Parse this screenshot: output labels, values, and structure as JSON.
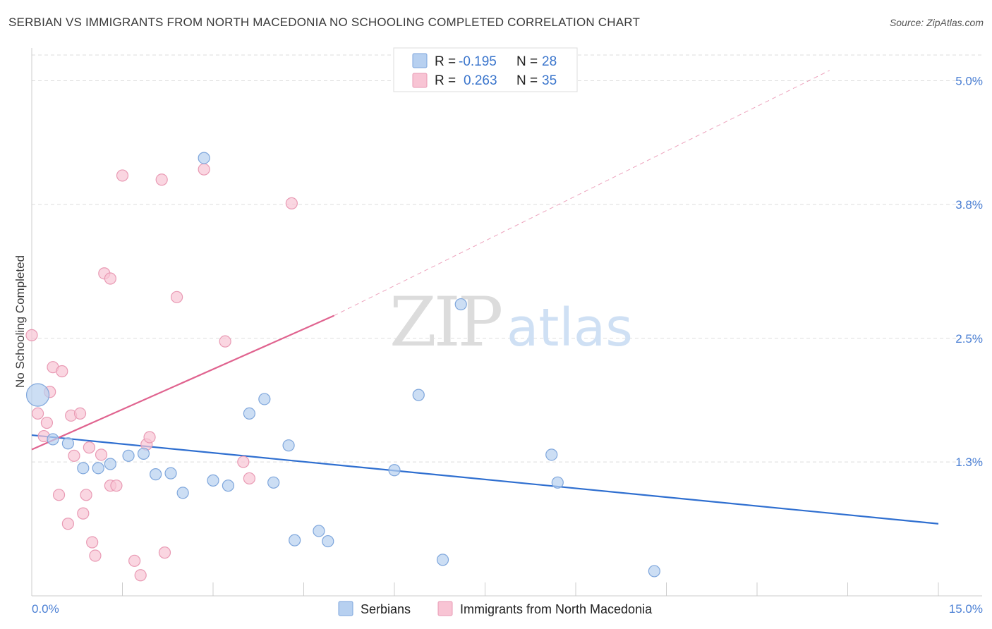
{
  "title": "SERBIAN VS IMMIGRANTS FROM NORTH MACEDONIA NO SCHOOLING COMPLETED CORRELATION CHART",
  "source": "Source: ZipAtlas.com",
  "watermark": {
    "zip": "ZIP",
    "atlas": "atlas"
  },
  "colors": {
    "serbians_fill": "#b7d0f0",
    "serbians_stroke": "#7ea6dc",
    "serbians_line": "#2f6fd0",
    "macedonia_fill": "#f8c4d4",
    "macedonia_stroke": "#e99ab4",
    "macedonia_line": "#e0638f",
    "tick_text": "#4a7fd4",
    "grid": "#dddddd"
  },
  "legend": {
    "rows": [
      {
        "r_label": "R =",
        "r_value": "-0.195",
        "n_label": "N =",
        "n_value": "28"
      },
      {
        "r_label": "R =",
        "r_value": "0.263",
        "n_label": "N =",
        "n_value": "35"
      }
    ]
  },
  "chart_data": {
    "type": "scatter",
    "title": "SERBIAN VS IMMIGRANTS FROM NORTH MACEDONIA NO SCHOOLING COMPLETED CORRELATION CHART",
    "xlabel": "",
    "ylabel": "No Schooling Completed",
    "xlim": [
      0,
      15
    ],
    "ylim": [
      0,
      5.25
    ],
    "x_tick_labels": [
      "0.0%",
      "15.0%"
    ],
    "y_ticks": [
      1.3,
      2.5,
      3.8,
      5.0
    ],
    "y_tick_labels": [
      "1.3%",
      "2.5%",
      "3.8%",
      "5.0%"
    ],
    "grid": true,
    "series": [
      {
        "name": "Serbians",
        "r": -0.195,
        "n": 28,
        "trend": {
          "x": [
            0,
            15
          ],
          "y": [
            1.56,
            0.7
          ]
        },
        "points": [
          {
            "x": 0.1,
            "y": 1.95,
            "big": true
          },
          {
            "x": 0.35,
            "y": 1.52
          },
          {
            "x": 0.6,
            "y": 1.48
          },
          {
            "x": 0.85,
            "y": 1.24
          },
          {
            "x": 1.1,
            "y": 1.24
          },
          {
            "x": 1.3,
            "y": 1.28
          },
          {
            "x": 1.6,
            "y": 1.36
          },
          {
            "x": 1.85,
            "y": 1.38
          },
          {
            "x": 2.05,
            "y": 1.18
          },
          {
            "x": 2.3,
            "y": 1.19
          },
          {
            "x": 2.5,
            "y": 1.0
          },
          {
            "x": 2.85,
            "y": 4.25
          },
          {
            "x": 3.0,
            "y": 1.12
          },
          {
            "x": 3.25,
            "y": 1.07
          },
          {
            "x": 3.6,
            "y": 1.77
          },
          {
            "x": 3.85,
            "y": 1.91
          },
          {
            "x": 4.0,
            "y": 1.1
          },
          {
            "x": 4.25,
            "y": 1.46
          },
          {
            "x": 4.35,
            "y": 0.54
          },
          {
            "x": 4.75,
            "y": 0.63
          },
          {
            "x": 4.9,
            "y": 0.53
          },
          {
            "x": 6.0,
            "y": 1.22
          },
          {
            "x": 6.4,
            "y": 1.95
          },
          {
            "x": 6.8,
            "y": 0.35
          },
          {
            "x": 7.1,
            "y": 2.83
          },
          {
            "x": 8.6,
            "y": 1.37
          },
          {
            "x": 8.7,
            "y": 1.1
          },
          {
            "x": 10.3,
            "y": 0.24
          }
        ]
      },
      {
        "name": "Immigrants from North Macedonia",
        "r": 0.263,
        "n": 35,
        "trend": {
          "x": [
            0,
            5
          ],
          "y": [
            1.42,
            2.72
          ]
        },
        "trend_extended": {
          "x": [
            5,
            13.2
          ],
          "y": [
            2.72,
            5.1
          ]
        },
        "points": [
          {
            "x": 0.0,
            "y": 2.53
          },
          {
            "x": 0.1,
            "y": 1.77
          },
          {
            "x": 0.2,
            "y": 1.55
          },
          {
            "x": 0.25,
            "y": 1.68
          },
          {
            "x": 0.3,
            "y": 1.98
          },
          {
            "x": 0.35,
            "y": 2.22
          },
          {
            "x": 0.45,
            "y": 0.98
          },
          {
            "x": 0.5,
            "y": 2.18
          },
          {
            "x": 0.6,
            "y": 0.7
          },
          {
            "x": 0.65,
            "y": 1.75
          },
          {
            "x": 0.7,
            "y": 1.36
          },
          {
            "x": 0.8,
            "y": 1.77
          },
          {
            "x": 0.85,
            "y": 0.8
          },
          {
            "x": 0.9,
            "y": 0.98
          },
          {
            "x": 0.95,
            "y": 1.44
          },
          {
            "x": 1.0,
            "y": 0.52
          },
          {
            "x": 1.05,
            "y": 0.39
          },
          {
            "x": 1.15,
            "y": 1.37
          },
          {
            "x": 1.2,
            "y": 3.13
          },
          {
            "x": 1.3,
            "y": 3.08
          },
          {
            "x": 1.3,
            "y": 1.07
          },
          {
            "x": 1.4,
            "y": 1.07
          },
          {
            "x": 1.5,
            "y": 4.08
          },
          {
            "x": 1.7,
            "y": 0.34
          },
          {
            "x": 1.8,
            "y": 0.2
          },
          {
            "x": 1.9,
            "y": 1.47
          },
          {
            "x": 1.95,
            "y": 1.54
          },
          {
            "x": 2.15,
            "y": 4.04
          },
          {
            "x": 2.2,
            "y": 0.42
          },
          {
            "x": 2.4,
            "y": 2.9
          },
          {
            "x": 2.85,
            "y": 4.14
          },
          {
            "x": 3.2,
            "y": 2.47
          },
          {
            "x": 3.5,
            "y": 1.3
          },
          {
            "x": 3.6,
            "y": 1.14
          },
          {
            "x": 4.3,
            "y": 3.81
          }
        ]
      }
    ]
  }
}
